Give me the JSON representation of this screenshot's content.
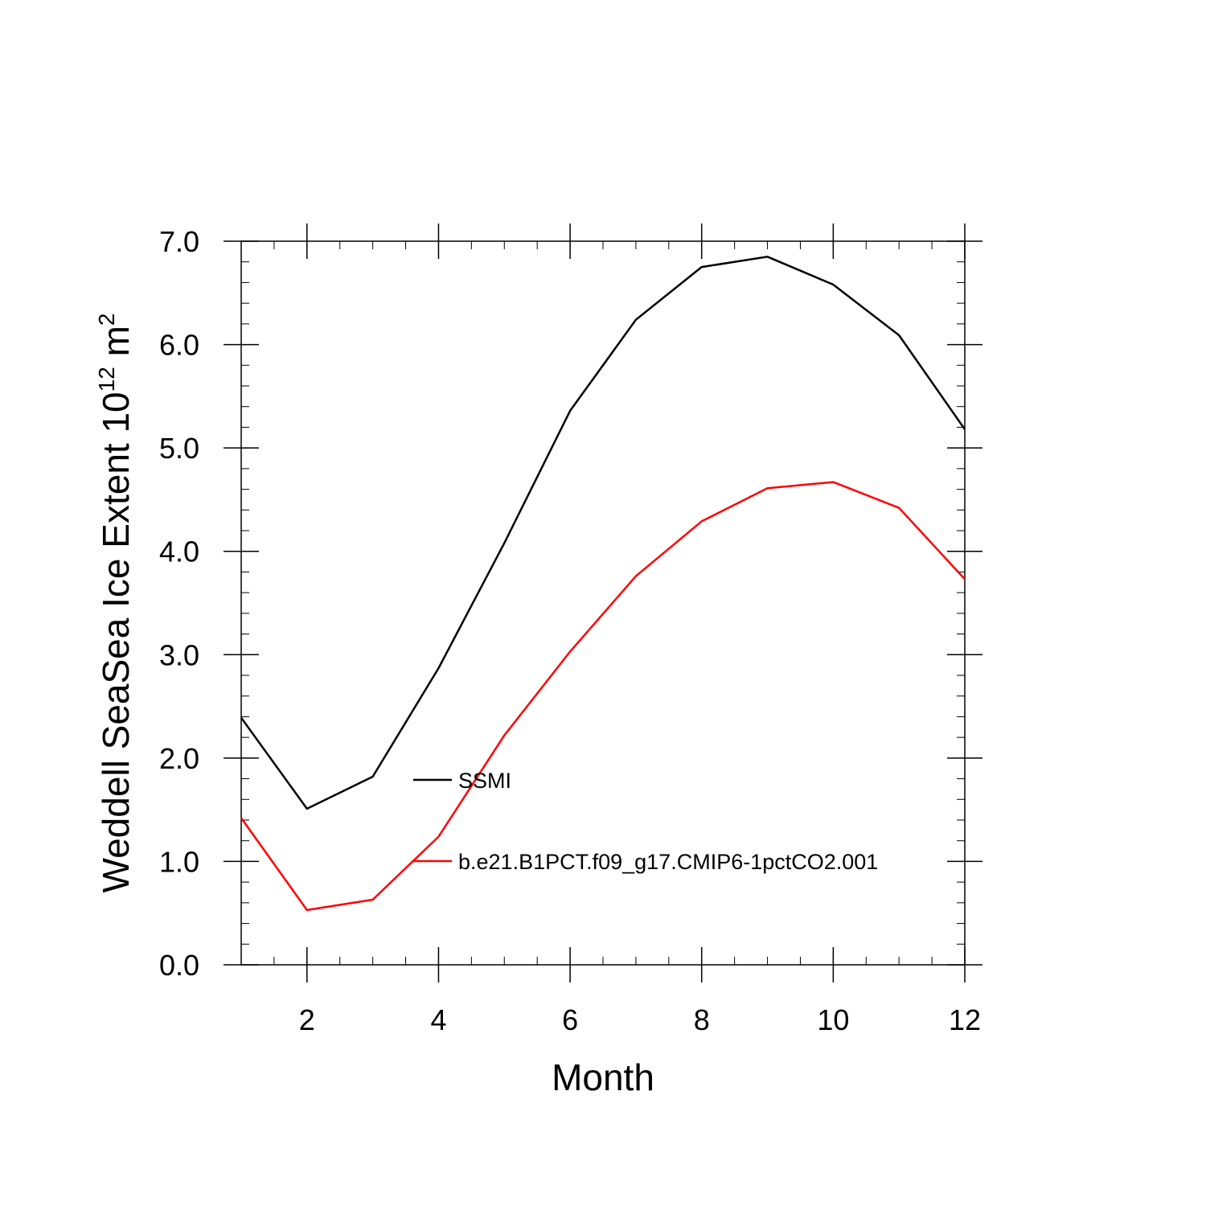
{
  "chart_data": {
    "type": "line",
    "xlabel": "Month",
    "ylabel": {
      "main": "Weddell SeaSea Ice Extent 10",
      "exponent": "12",
      "unit": " m",
      "unit_exponent": "2"
    },
    "xlim": [
      1,
      12
    ],
    "ylim": [
      0.0,
      7.0
    ],
    "x_ticks": [
      2,
      4,
      6,
      8,
      10,
      12
    ],
    "x_tick_labels": [
      "2",
      "4",
      "6",
      "8",
      "10",
      "12"
    ],
    "y_ticks": [
      0,
      1,
      2,
      3,
      4,
      5,
      6,
      7
    ],
    "y_tick_labels": [
      "0.0",
      "1.0",
      "2.0",
      "3.0",
      "4.0",
      "5.0",
      "6.0",
      "7.0"
    ],
    "x": [
      1,
      2,
      3,
      4,
      5,
      6,
      7,
      8,
      9,
      10,
      11,
      12
    ],
    "series": [
      {
        "name": "SSMI",
        "color": "#000000",
        "values": [
          2.39,
          1.51,
          1.82,
          2.87,
          4.08,
          5.36,
          6.24,
          6.75,
          6.85,
          6.58,
          6.09,
          5.18
        ]
      },
      {
        "name": "b.e21.B1PCT.f09_g17.CMIP6-1pctCO2.001",
        "color": "#ff0000",
        "values": [
          1.42,
          0.53,
          0.63,
          1.24,
          2.22,
          3.03,
          3.76,
          4.29,
          4.61,
          4.67,
          4.42,
          3.73
        ]
      }
    ],
    "legend_placement": "center-left inside plot"
  }
}
